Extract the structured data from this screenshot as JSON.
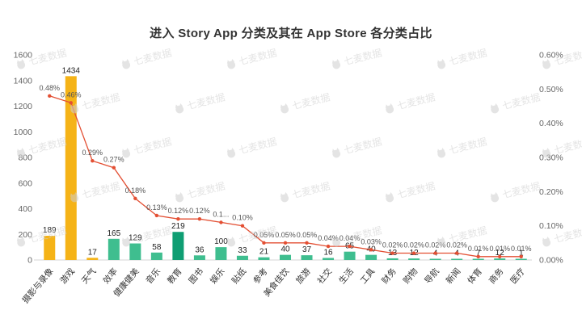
{
  "title": "进入 Story App 分类及其在 App Store 各分类占比",
  "watermark": {
    "text": "七麦数据"
  },
  "chart_data": {
    "type": "bar",
    "subtype": "bar+line-combo",
    "title": "进入 Story App 分类及其在 App Store 各分类占比",
    "categories": [
      "摄影与录像",
      "游戏",
      "天气",
      "效率",
      "健康健美",
      "音乐",
      "教育",
      "图书",
      "娱乐",
      "贴纸",
      "参考",
      "美食佳饮",
      "旅游",
      "社交",
      "生活",
      "工具",
      "财务",
      "购物",
      "导航",
      "新闻",
      "体育",
      "商务",
      "医疗"
    ],
    "series": [
      {
        "name": "进入 Story App 数量",
        "type": "bar",
        "axis": "left",
        "values": [
          189,
          1434,
          17,
          165,
          129,
          58,
          219,
          36,
          100,
          33,
          21,
          40,
          37,
          16,
          65,
          40,
          13,
          12,
          4,
          4,
          7,
          12,
          1
        ],
        "labels": [
          "189",
          "1434",
          "17",
          "165",
          "129",
          "58",
          "219",
          "36",
          "100",
          "33",
          "21",
          "40",
          "37",
          "16",
          "65",
          "40",
          "13",
          "12",
          "4",
          "4",
          "7",
          "12",
          "1"
        ]
      },
      {
        "name": "App Store 各分类占比",
        "type": "line",
        "axis": "right",
        "values": [
          0.48,
          0.46,
          0.29,
          0.27,
          0.18,
          0.13,
          0.12,
          0.12,
          0.11,
          0.1,
          0.05,
          0.05,
          0.05,
          0.04,
          0.04,
          0.03,
          0.02,
          0.02,
          0.02,
          0.02,
          0.01,
          0.01,
          0.01
        ],
        "labels": [
          "0.48%",
          "0.46%",
          "0.29%",
          "0.27%",
          "0.18%",
          "0.13%",
          "0.12%",
          "0.12%",
          "0.1...",
          "0.10%",
          "0.05%",
          "0.05%",
          "0.05%",
          "0.04%",
          "0.04%",
          "0.03%",
          "0.02%",
          "0.02%",
          "0.02%",
          "0.02%",
          "0.01%",
          "0.01%",
          "0.01%"
        ]
      }
    ],
    "left_axis": {
      "min": 0,
      "max": 1600,
      "ticks": [
        "0",
        "200",
        "400",
        "600",
        "800",
        "1000",
        "1200",
        "1400",
        "1600"
      ]
    },
    "right_axis": {
      "min": 0,
      "max": 0.6,
      "ticks": [
        "0.00%",
        "0.10%",
        "0.20%",
        "0.30%",
        "0.40%",
        "0.50%",
        "0.60%"
      ]
    },
    "grid": false,
    "legend": "none",
    "colors": {
      "line": "#E34F33",
      "bar_highlight": "#F5B317",
      "bar_default": "#3FBE8F",
      "bar_dark": "#0F9E73",
      "axis_text": "#666666",
      "label_text": "#222222",
      "percent_text": "#555555"
    },
    "bar_colors": [
      "#F5B317",
      "#F5B317",
      "#F5B317",
      "#3FBE8F",
      "#3FBE8F",
      "#3FBE8F",
      "#0F9E73",
      "#3FBE8F",
      "#3FBE8F",
      "#3FBE8F",
      "#3FBE8F",
      "#3FBE8F",
      "#3FBE8F",
      "#3FBE8F",
      "#3FBE8F",
      "#3FBE8F",
      "#3FBE8F",
      "#3FBE8F",
      "#3FBE8F",
      "#3FBE8F",
      "#3FBE8F",
      "#3FBE8F",
      "#3FBE8F"
    ]
  }
}
